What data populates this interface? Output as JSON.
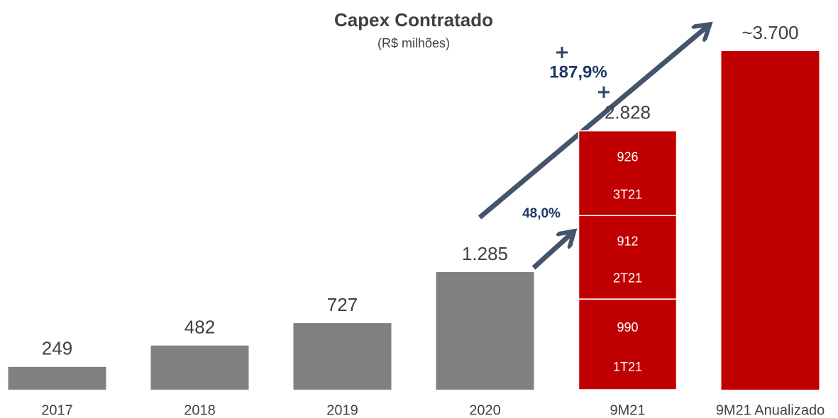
{
  "chart_data": {
    "type": "bar",
    "title": "Capex Contratado",
    "subtitle": "(R$ milhões)",
    "categories": [
      "2017",
      "2018",
      "2019",
      "2020",
      "9M21",
      "9M21 Anualizado"
    ],
    "values": [
      249,
      482,
      727,
      1285,
      2828,
      3700
    ],
    "value_labels": [
      "249",
      "482",
      "727",
      "1.285",
      "2.828",
      "~3.700"
    ],
    "colors": [
      "#808080",
      "#808080",
      "#808080",
      "#808080",
      "#c00000",
      "#c00000"
    ],
    "stacks": [
      null,
      null,
      null,
      null,
      [
        {
          "name": "1T21",
          "value": 990
        },
        {
          "name": "2T21",
          "value": 912
        },
        {
          "name": "3T21",
          "value": 926
        }
      ],
      null
    ],
    "stack_color": "#c00000",
    "annotations": [
      {
        "text": "187,9%"
      },
      {
        "text": "48,0%"
      }
    ],
    "arrow_color": "#44546a",
    "annotation_color": "#1f3864"
  }
}
